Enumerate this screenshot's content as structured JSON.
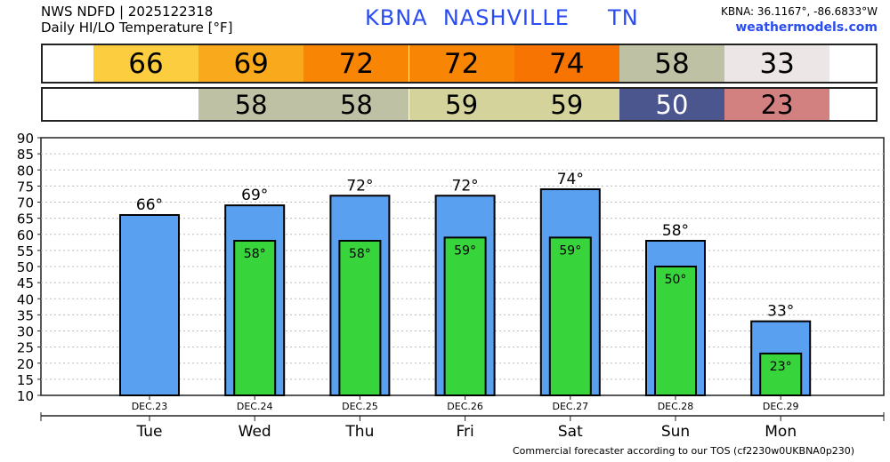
{
  "header": {
    "line1": "NWS NDFD | 2025122318",
    "line2": "Daily HI/LO Temperature [°F]",
    "title": "KBNA  NASHVILLE     TN",
    "coords": "KBNA: 36.1167°, -86.6833°W",
    "site": "weathermodels.com"
  },
  "strips": {
    "hi": [
      {
        "v": "66",
        "bg": "#fccd3e",
        "fg": "#000"
      },
      {
        "v": "69",
        "bg": "#f9a91c",
        "fg": "#000"
      },
      {
        "v": "72",
        "bg": "#f88504",
        "fg": "#000"
      },
      {
        "v": "72",
        "bg": "#f88504",
        "fg": "#000"
      },
      {
        "v": "74",
        "bg": "#f77302",
        "fg": "#000"
      },
      {
        "v": "58",
        "bg": "#bfc1a5",
        "fg": "#000"
      },
      {
        "v": "33",
        "bg": "#ece6e6",
        "fg": "#000"
      }
    ],
    "lo": [
      null,
      {
        "v": "58",
        "bg": "#bfc1a5",
        "fg": "#000"
      },
      {
        "v": "58",
        "bg": "#bfc1a5",
        "fg": "#000"
      },
      {
        "v": "59",
        "bg": "#d3d39b",
        "fg": "#000"
      },
      {
        "v": "59",
        "bg": "#d3d39b",
        "fg": "#000"
      },
      {
        "v": "50",
        "bg": "#4b568f",
        "fg": "#fff"
      },
      {
        "v": "23",
        "bg": "#d38080",
        "fg": "#000"
      }
    ]
  },
  "footer": "Commercial forecaster according to our TOS (cf2230w0UKBNA0p230)",
  "colors": {
    "hi_bar": "#5aa0f0",
    "lo_bar": "#38d43c"
  },
  "chart_data": {
    "type": "bar",
    "categories": [
      "Tue",
      "Wed",
      "Thu",
      "Fri",
      "Sat",
      "Sun",
      "Mon"
    ],
    "dates": [
      "DEC.23",
      "DEC.24",
      "DEC.25",
      "DEC.26",
      "DEC.27",
      "DEC.28",
      "DEC.29"
    ],
    "series": [
      {
        "name": "High",
        "values": [
          66,
          69,
          72,
          72,
          74,
          58,
          33
        ]
      },
      {
        "name": "Low",
        "values": [
          null,
          58,
          58,
          59,
          59,
          50,
          23
        ]
      }
    ],
    "hi_labels": [
      "66°",
      "69°",
      "72°",
      "72°",
      "74°",
      "58°",
      "33°"
    ],
    "lo_labels": [
      "",
      "58°",
      "58°",
      "59°",
      "59°",
      "50°",
      "23°"
    ],
    "ylim": [
      10,
      90
    ],
    "yticks": [
      "10",
      "15",
      "20",
      "25",
      "30",
      "35",
      "40",
      "45",
      "50",
      "55",
      "60",
      "65",
      "70",
      "75",
      "80",
      "85",
      "90"
    ],
    "grid": true
  }
}
